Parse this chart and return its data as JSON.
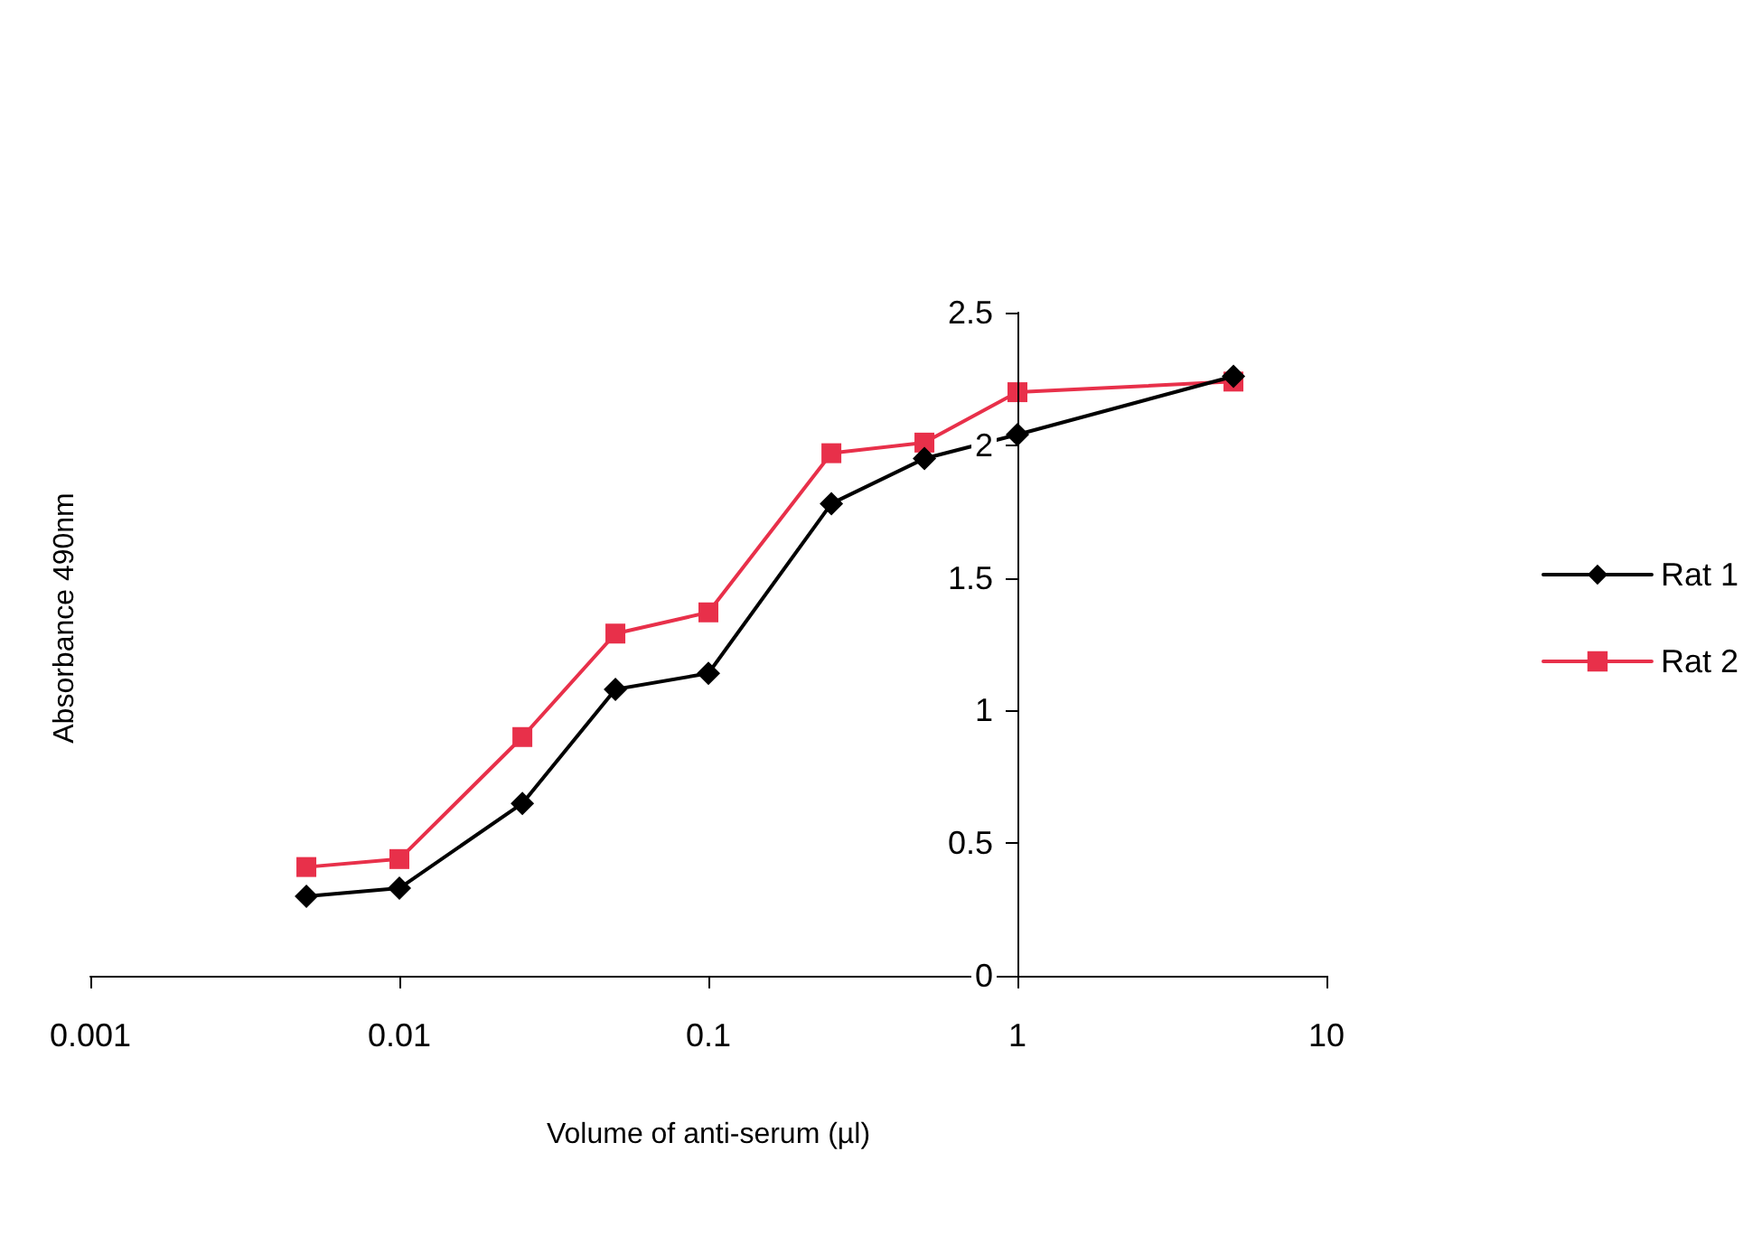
{
  "chart_data": {
    "type": "line",
    "xlabel": "Volume of anti-serum (µl)",
    "ylabel": "Absorbance 490nm",
    "log": "x",
    "xlim": [
      0.001,
      10
    ],
    "xticks": [
      0.001,
      0.01,
      0.1,
      1,
      10
    ],
    "ylim": [
      0,
      2.5
    ],
    "yticks": [
      0,
      0.5,
      1,
      1.5,
      2,
      2.5
    ],
    "grid": false,
    "legend": "right",
    "line_style": "solid",
    "x": [
      0.005,
      0.01,
      0.025,
      0.05,
      0.1,
      0.25,
      0.5,
      1,
      5
    ],
    "series": [
      {
        "name": "Rat 1",
        "color": "#000000",
        "marker": "diamond",
        "values": [
          0.3,
          0.33,
          0.65,
          1.08,
          1.14,
          1.78,
          1.95,
          2.04,
          2.26
        ]
      },
      {
        "name": "Rat 2",
        "color": "#e8304a",
        "marker": "square",
        "values": [
          0.41,
          0.44,
          0.9,
          1.29,
          1.37,
          1.97,
          2.01,
          2.2,
          2.24
        ]
      }
    ]
  }
}
